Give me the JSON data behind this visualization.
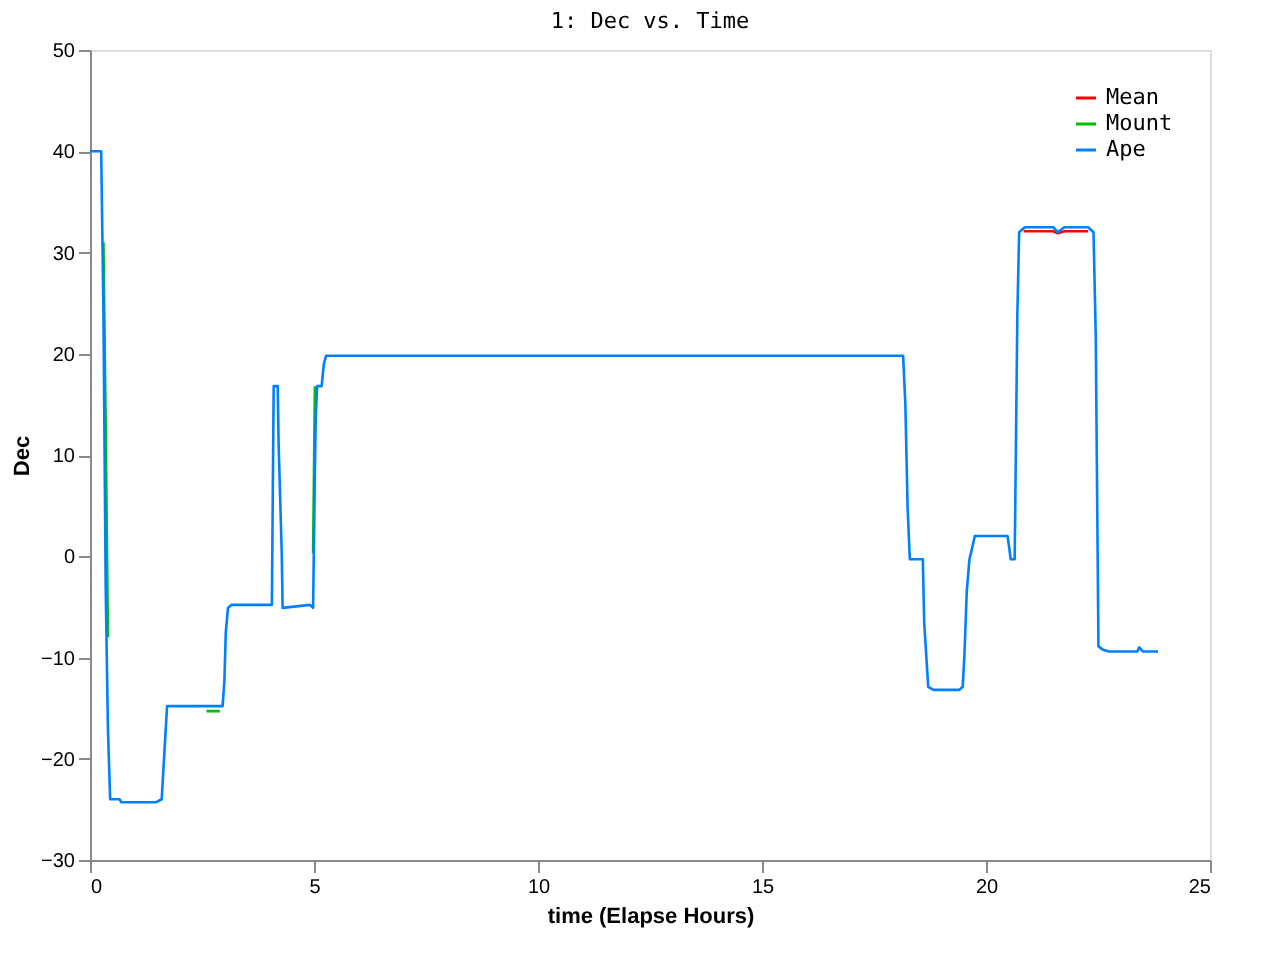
{
  "chart_data": {
    "type": "line",
    "title": "1: Dec vs. Time",
    "xlabel": "time (Elapse Hours)",
    "ylabel": "Dec",
    "x": [
      0,
      0.25,
      0.3,
      0.35,
      0.4,
      0.45,
      0.5,
      0.66,
      0.7,
      1.47,
      1.6,
      1.72,
      2.96,
      3.0,
      3.03,
      3.08,
      3.16,
      4.06,
      4.08,
      4.1,
      4.19,
      4.21,
      4.28,
      4.3,
      4.91,
      4.98,
      5.02,
      5.04,
      5.07,
      5.17,
      5.22,
      5.27,
      18.15,
      18.2,
      18.25,
      18.3,
      18.59,
      18.62,
      18.71,
      18.83,
      19.4,
      19.48,
      19.52,
      19.57,
      19.63,
      19.69,
      19.75,
      20.48,
      20.52,
      20.55,
      20.64,
      20.66,
      20.7,
      20.74,
      20.84,
      20.88,
      21.5,
      21.6,
      21.75,
      22.28,
      22.4,
      22.45,
      22.49,
      22.51,
      22.6,
      22.74,
      23.38,
      23.42,
      23.5,
      23.84
    ],
    "series": [
      {
        "name": "Mean",
        "color": "#ff0000",
        "values": [
          null,
          null,
          null,
          null,
          null,
          null,
          null,
          null,
          null,
          null,
          null,
          null,
          null,
          null,
          null,
          null,
          null,
          null,
          null,
          null,
          null,
          null,
          null,
          null,
          null,
          null,
          null,
          null,
          null,
          null,
          null,
          null,
          null,
          null,
          null,
          null,
          null,
          null,
          null,
          null,
          null,
          null,
          null,
          null,
          null,
          null,
          null,
          null,
          null,
          null,
          null,
          null,
          null,
          null,
          32.1,
          32.1,
          32.1,
          31.9,
          32.1,
          32.1,
          null,
          null,
          null,
          null,
          null,
          null,
          null,
          null,
          null,
          null
        ]
      },
      {
        "name": "Mount",
        "color": "#00c000",
        "x": [
          0.3,
          0.35,
          0.4,
          0.45,
          2.6,
          2.9,
          3.0,
          4.98,
          5.02
        ],
        "values": [
          31,
          13,
          -8,
          null,
          -15.3,
          -15.3,
          null,
          0.3,
          16.8
        ]
      },
      {
        "name": "Ape",
        "color": "#0080ff",
        "values": [
          40,
          40,
          24,
          -3,
          -17,
          -24,
          -24,
          -24,
          -24.3,
          -24.3,
          -24,
          -14.8,
          -14.8,
          -12.3,
          -7.6,
          -5.1,
          -4.8,
          -4.8,
          6.1,
          16.8,
          16.8,
          11.1,
          0.3,
          -5.1,
          -4.8,
          -5.1,
          8.5,
          13.9,
          16.8,
          16.8,
          19,
          19.8,
          19.8,
          15,
          4.8,
          -0.3,
          -0.3,
          -6.5,
          -12.9,
          -13.2,
          -13.2,
          -12.9,
          -9.6,
          -3.5,
          -0.3,
          0.8,
          2,
          2,
          0.8,
          -0.3,
          -0.3,
          7.7,
          24,
          32,
          32.4,
          32.5,
          32.5,
          32,
          32.5,
          32.5,
          32,
          21.7,
          1.3,
          -8.9,
          -9.2,
          -9.4,
          -9.4,
          -9,
          -9.4,
          -9.4
        ]
      }
    ],
    "xlim": [
      0,
      25
    ],
    "xticks": [
      0,
      5,
      10,
      15,
      20,
      25
    ],
    "ylim": [
      -30,
      50
    ],
    "yticks": [
      -30,
      -20,
      -10,
      0,
      10,
      20,
      30,
      40,
      50
    ],
    "grid": false,
    "legend": "top right",
    "marker": "none",
    "line_style": "solid"
  }
}
